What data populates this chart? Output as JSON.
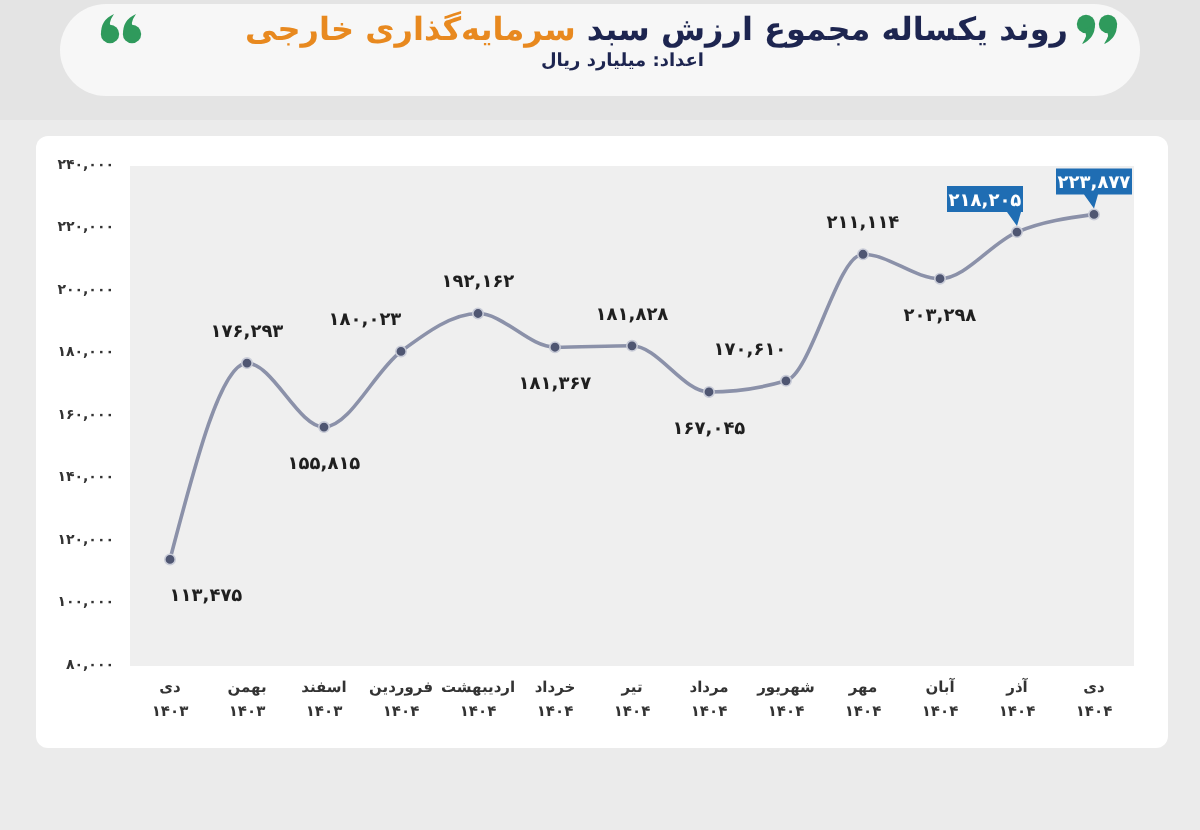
{
  "chart_data": {
    "type": "line",
    "title": "روند یکساله مجموع ارزش سبد سرمایه‌گذاری خارجی",
    "subtitle": "اعداد: میلیارد ریال",
    "categories": [
      "دی\n۱۴۰۳",
      "بهمن\n۱۴۰۳",
      "اسفند\n۱۴۰۳",
      "فروردین\n۱۴۰۴",
      "اردیبهشت\n۱۴۰۴",
      "خرداد\n۱۴۰۴",
      "تیر\n۱۴۰۴",
      "مرداد\n۱۴۰۴",
      "شهریور\n۱۴۰۴",
      "مهر\n۱۴۰۴",
      "آبان\n۱۴۰۴",
      "آذر\n۱۴۰۴",
      "دی\n۱۴۰۴"
    ],
    "values": [
      113475,
      176293,
      155815,
      180023,
      192162,
      181367,
      181828,
      167045,
      170610,
      211114,
      203298,
      218205,
      223877
    ],
    "value_labels": [
      "۱۱۳,۴۷۵",
      "۱۷۶,۲۹۳",
      "۱۵۵,۸۱۵",
      "۱۸۰,۰۲۳",
      "۱۹۲,۱۶۲",
      "۱۸۱,۳۶۷",
      "۱۸۱,۸۲۸",
      "۱۶۷,۰۴۵",
      "۱۷۰,۶۱۰",
      "۲۱۱,۱۱۴",
      "۲۰۳,۲۹۸",
      null,
      null
    ],
    "annotations": [
      {
        "text": "۲۱۸,۲۰۵",
        "x": "آذر\n۱۴۰۴",
        "y": 218205
      },
      {
        "text": "۲۲۳,۸۷۷",
        "x": "دی\n۱۴۰۴",
        "y": 223877
      }
    ],
    "color": "#8b91a9",
    "marker": "circle",
    "line_style": "solid",
    "ylim": [
      80000,
      240000
    ],
    "yticks": [
      {
        "value": 80000,
        "label": "۸۰,۰۰۰"
      },
      {
        "value": 100000,
        "label": "۱۰۰,۰۰۰"
      },
      {
        "value": 120000,
        "label": "۱۲۰,۰۰۰"
      },
      {
        "value": 140000,
        "label": "۱۴۰,۰۰۰"
      },
      {
        "value": 160000,
        "label": "۱۶۰,۰۰۰"
      },
      {
        "value": 180000,
        "label": "۱۸۰,۰۰۰"
      },
      {
        "value": 200000,
        "label": "۲۰۰,۰۰۰"
      },
      {
        "value": 220000,
        "label": "۲۲۰,۰۰۰"
      },
      {
        "value": 240000,
        "label": "۲۴۰,۰۰۰"
      }
    ]
  }
}
